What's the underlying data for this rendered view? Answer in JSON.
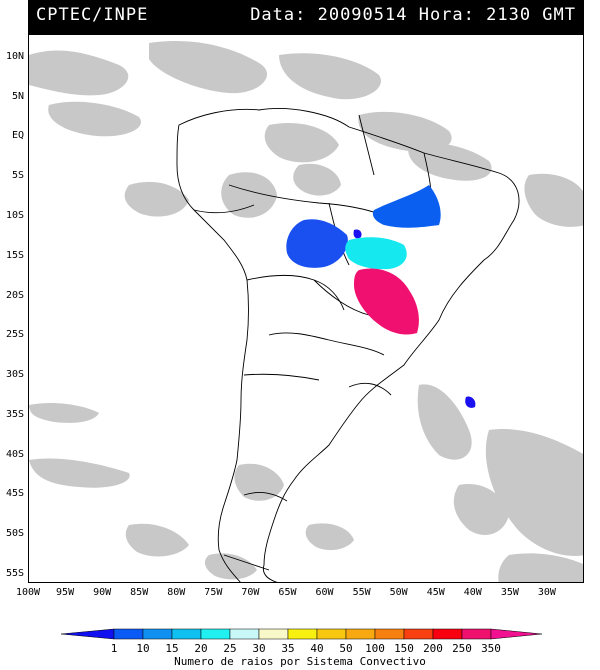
{
  "header": {
    "left": "CPTEC/INPE",
    "right": "Data: 20090514 Hora: 2130 GMT"
  },
  "map": {
    "lon_range": [
      -100,
      -25
    ],
    "lat_range": [
      -56,
      13
    ],
    "lat_labels": [
      "10N",
      "5N",
      "EQ",
      "5S",
      "10S",
      "15S",
      "20S",
      "25S",
      "30S",
      "35S",
      "40S",
      "45S",
      "50S",
      "55S"
    ],
    "lat_values": [
      10,
      5,
      0,
      -5,
      -10,
      -15,
      -20,
      -25,
      -30,
      -35,
      -40,
      -45,
      -50,
      -55
    ],
    "lon_labels": [
      "100W",
      "95W",
      "90W",
      "85W",
      "80W",
      "75W",
      "70W",
      "65W",
      "60W",
      "55W",
      "50W",
      "45W",
      "40W",
      "35W",
      "30W"
    ],
    "lon_values": [
      -100,
      -95,
      -90,
      -85,
      -80,
      -75,
      -70,
      -65,
      -60,
      -55,
      -50,
      -45,
      -40,
      -35,
      -30
    ],
    "colors": {
      "cloud": "#c8c8c8",
      "cloud_dark": "#a8a8a8",
      "coast": "#000000",
      "level_1": "#1a10f0",
      "level_10": "#0a5ff0",
      "level_15": "#1a96f0",
      "level_25": "#16e8f0",
      "level_350": "#f01070"
    }
  },
  "colorbar": {
    "title": "Numero de raios por Sistema Convectivo",
    "ticks": [
      "1",
      "10",
      "15",
      "20",
      "25",
      "30",
      "35",
      "40",
      "50",
      "100",
      "150",
      "200",
      "250",
      "350"
    ],
    "colors": [
      "#1010f0",
      "#0a5af5",
      "#1090f0",
      "#10c0f0",
      "#20f0f0",
      "#c8f8f8",
      "#f8f8c8",
      "#f8f010",
      "#f8c810",
      "#f8a810",
      "#f88010",
      "#f84010",
      "#f80010",
      "#f0106e",
      "#f01090"
    ]
  }
}
